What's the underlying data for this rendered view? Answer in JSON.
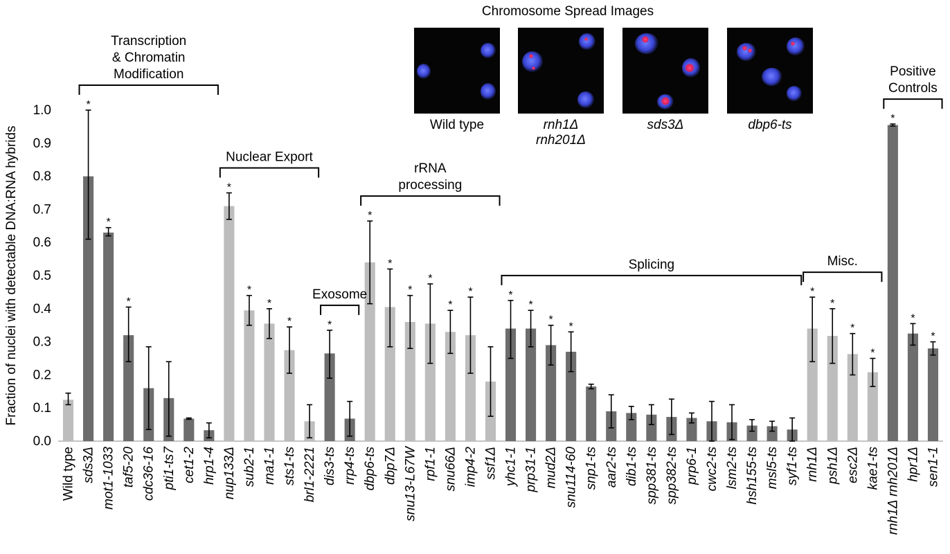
{
  "figure_title": "Chromosome Spread Images",
  "panels": [
    {
      "label_lines": [
        "Wild type"
      ],
      "italic": false
    },
    {
      "label_lines": [
        "rnh1Δ",
        "rnh201Δ"
      ],
      "italic": true
    },
    {
      "label_lines": [
        "sds3Δ"
      ],
      "italic": true
    },
    {
      "label_lines": [
        "dbp6-ts"
      ],
      "italic": true
    }
  ],
  "chart_data": {
    "type": "bar",
    "ylabel": "Fraction of nuclei with detectable DNA:RNA hybrids",
    "xlabel": "",
    "ylim": [
      0,
      1.0
    ],
    "yticks": [
      "0.0",
      "0.1",
      "0.2",
      "0.3",
      "0.4",
      "0.5",
      "0.6",
      "0.7",
      "0.8",
      "0.9",
      "1.0"
    ],
    "colors": {
      "light": "#bdbdbd",
      "dark": "#6d6d6d"
    },
    "bars": [
      {
        "label": "Wild type",
        "value": 0.125,
        "err": [
          0.11,
          0.145
        ],
        "shade": "light",
        "star": false,
        "italic": false
      },
      {
        "label": "sds3Δ",
        "value": 0.8,
        "err": [
          0.61,
          1.0
        ],
        "shade": "dark",
        "star": true,
        "italic": true
      },
      {
        "label": "mot1-1033",
        "value": 0.63,
        "err": [
          0.62,
          0.645
        ],
        "shade": "dark",
        "star": true,
        "italic": true
      },
      {
        "label": "taf5-20",
        "value": 0.32,
        "err": [
          0.24,
          0.405
        ],
        "shade": "dark",
        "star": true,
        "italic": true
      },
      {
        "label": "cdc36-16",
        "value": 0.16,
        "err": [
          0.035,
          0.285
        ],
        "shade": "dark",
        "star": false,
        "italic": true
      },
      {
        "label": "pti1-ts7",
        "value": 0.13,
        "err": [
          0.015,
          0.24
        ],
        "shade": "dark",
        "star": false,
        "italic": true
      },
      {
        "label": "cet1-2",
        "value": 0.068,
        "err": [
          0.066,
          0.07
        ],
        "shade": "dark",
        "star": false,
        "italic": true
      },
      {
        "label": "hrp1-4",
        "value": 0.033,
        "err": [
          0.01,
          0.055
        ],
        "shade": "dark",
        "star": false,
        "italic": true
      },
      {
        "label": "nup133Δ",
        "value": 0.71,
        "err": [
          0.67,
          0.75
        ],
        "shade": "light",
        "star": true,
        "italic": true
      },
      {
        "label": "sub2-1",
        "value": 0.395,
        "err": [
          0.35,
          0.44
        ],
        "shade": "light",
        "star": true,
        "italic": true
      },
      {
        "label": "rna1-1",
        "value": 0.355,
        "err": [
          0.31,
          0.4
        ],
        "shade": "light",
        "star": true,
        "italic": true
      },
      {
        "label": "sts1-ts",
        "value": 0.275,
        "err": [
          0.205,
          0.345
        ],
        "shade": "light",
        "star": true,
        "italic": true
      },
      {
        "label": "brl1-2221",
        "value": 0.06,
        "err": [
          0.01,
          0.11
        ],
        "shade": "light",
        "star": false,
        "italic": true
      },
      {
        "label": "dis3-ts",
        "value": 0.265,
        "err": [
          0.19,
          0.335
        ],
        "shade": "dark",
        "star": true,
        "italic": true
      },
      {
        "label": "rrp4-ts",
        "value": 0.068,
        "err": [
          0.015,
          0.12
        ],
        "shade": "dark",
        "star": false,
        "italic": true
      },
      {
        "label": "dbp6-ts",
        "value": 0.54,
        "err": [
          0.415,
          0.665
        ],
        "shade": "light",
        "star": true,
        "italic": true
      },
      {
        "label": "dbp7Δ",
        "value": 0.405,
        "err": [
          0.285,
          0.52
        ],
        "shade": "light",
        "star": true,
        "italic": true
      },
      {
        "label": "snu13-L67W",
        "value": 0.36,
        "err": [
          0.28,
          0.44
        ],
        "shade": "light",
        "star": true,
        "italic": true
      },
      {
        "label": "rpf1-1",
        "value": 0.355,
        "err": [
          0.235,
          0.475
        ],
        "shade": "light",
        "star": true,
        "italic": true
      },
      {
        "label": "snu66Δ",
        "value": 0.33,
        "err": [
          0.265,
          0.395
        ],
        "shade": "light",
        "star": true,
        "italic": true
      },
      {
        "label": "imp4-2",
        "value": 0.32,
        "err": [
          0.205,
          0.435
        ],
        "shade": "light",
        "star": true,
        "italic": true
      },
      {
        "label": "ssf1Δ",
        "value": 0.18,
        "err": [
          0.075,
          0.285
        ],
        "shade": "light",
        "star": false,
        "italic": true
      },
      {
        "label": "yhc1-1",
        "value": 0.34,
        "err": [
          0.25,
          0.425
        ],
        "shade": "dark",
        "star": true,
        "italic": true
      },
      {
        "label": "prp31-1",
        "value": 0.34,
        "err": [
          0.285,
          0.395
        ],
        "shade": "dark",
        "star": true,
        "italic": true
      },
      {
        "label": "mud2Δ",
        "value": 0.29,
        "err": [
          0.23,
          0.35
        ],
        "shade": "dark",
        "star": true,
        "italic": true
      },
      {
        "label": "snu114-60",
        "value": 0.27,
        "err": [
          0.21,
          0.33
        ],
        "shade": "dark",
        "star": true,
        "italic": true
      },
      {
        "label": "snp1-ts",
        "value": 0.165,
        "err": [
          0.158,
          0.172
        ],
        "shade": "dark",
        "star": false,
        "italic": true
      },
      {
        "label": "aar2-ts",
        "value": 0.09,
        "err": [
          0.04,
          0.14
        ],
        "shade": "dark",
        "star": false,
        "italic": true
      },
      {
        "label": "dib1-ts",
        "value": 0.085,
        "err": [
          0.065,
          0.105
        ],
        "shade": "dark",
        "star": false,
        "italic": true
      },
      {
        "label": "spp381-ts",
        "value": 0.08,
        "err": [
          0.05,
          0.11
        ],
        "shade": "dark",
        "star": false,
        "italic": true
      },
      {
        "label": "spp382-ts",
        "value": 0.073,
        "err": [
          0.02,
          0.127
        ],
        "shade": "dark",
        "star": false,
        "italic": true
      },
      {
        "label": "prp6-1",
        "value": 0.07,
        "err": [
          0.055,
          0.085
        ],
        "shade": "dark",
        "star": false,
        "italic": true
      },
      {
        "label": "cwc2-ts",
        "value": 0.06,
        "err": [
          0.0,
          0.12
        ],
        "shade": "dark",
        "star": false,
        "italic": true
      },
      {
        "label": "lsm2-ts",
        "value": 0.057,
        "err": [
          0.005,
          0.11
        ],
        "shade": "dark",
        "star": false,
        "italic": true
      },
      {
        "label": "hsh155-ts",
        "value": 0.047,
        "err": [
          0.03,
          0.065
        ],
        "shade": "dark",
        "star": false,
        "italic": true
      },
      {
        "label": "msl5-ts",
        "value": 0.045,
        "err": [
          0.03,
          0.06
        ],
        "shade": "dark",
        "star": false,
        "italic": true
      },
      {
        "label": "syf1-ts",
        "value": 0.035,
        "err": [
          0.0,
          0.07
        ],
        "shade": "dark",
        "star": false,
        "italic": true
      },
      {
        "label": "rnh1Δ",
        "value": 0.34,
        "err": [
          0.24,
          0.435
        ],
        "shade": "light",
        "star": true,
        "italic": true
      },
      {
        "label": "psh1Δ",
        "value": 0.318,
        "err": [
          0.235,
          0.4
        ],
        "shade": "light",
        "star": true,
        "italic": true
      },
      {
        "label": "esc2Δ",
        "value": 0.263,
        "err": [
          0.2,
          0.325
        ],
        "shade": "light",
        "star": true,
        "italic": true
      },
      {
        "label": "kae1-ts",
        "value": 0.208,
        "err": [
          0.165,
          0.25
        ],
        "shade": "light",
        "star": true,
        "italic": true
      },
      {
        "label": "rnh1Δ rnh201Δ",
        "value": 0.955,
        "err": [
          0.952,
          0.958
        ],
        "shade": "dark",
        "star": true,
        "italic": true
      },
      {
        "label": "hpr1Δ",
        "value": 0.325,
        "err": [
          0.29,
          0.355
        ],
        "shade": "dark",
        "star": true,
        "italic": true
      },
      {
        "label": "sen1-1",
        "value": 0.28,
        "err": [
          0.26,
          0.3
        ],
        "shade": "dark",
        "star": true,
        "italic": true
      }
    ],
    "groups": [
      {
        "lines": [
          "Transcription",
          "& Chromatin",
          "Modification"
        ],
        "start": 1,
        "end": 7
      },
      {
        "lines": [
          "Nuclear Export"
        ],
        "start": 8,
        "end": 12
      },
      {
        "lines": [
          "Exosome"
        ],
        "start": 13,
        "end": 14
      },
      {
        "lines": [
          "rRNA",
          "processing"
        ],
        "start": 15,
        "end": 21
      },
      {
        "lines": [
          "Splicing"
        ],
        "start": 22,
        "end": 36
      },
      {
        "lines": [
          "Misc."
        ],
        "start": 37,
        "end": 40
      },
      {
        "lines": [
          "Positive",
          "Controls"
        ],
        "start": 41,
        "end": 43
      }
    ],
    "significance_marker": "*"
  }
}
